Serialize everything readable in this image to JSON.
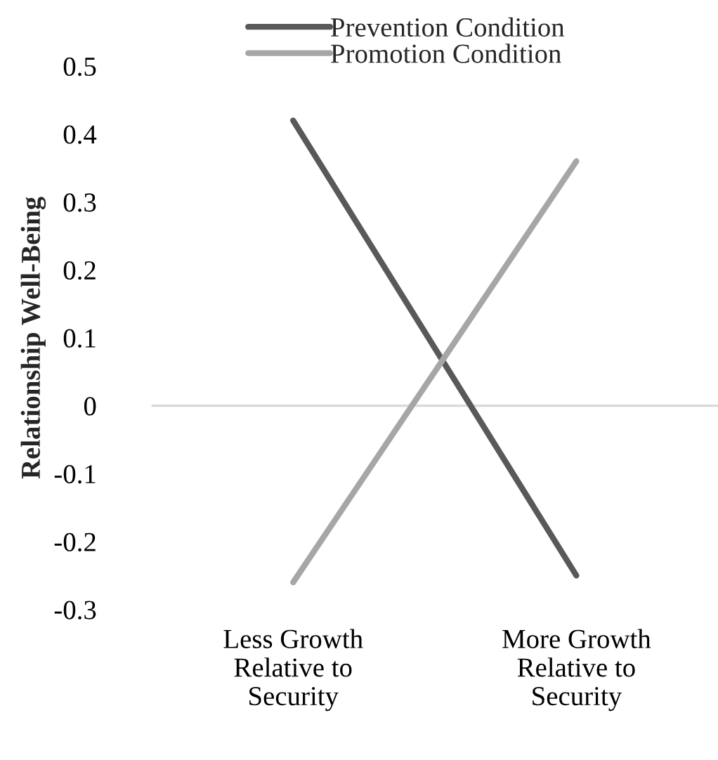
{
  "chart_data": {
    "type": "line",
    "ylabel": "Relationship Well-Being",
    "categories": [
      "Less Growth\nRelative to\nSecurity",
      "More Growth\nRelative to\nSecurity"
    ],
    "series": [
      {
        "name": "Prevention Condition",
        "color": "#595959",
        "values": [
          0.42,
          -0.25
        ]
      },
      {
        "name": "Promotion Condition",
        "color": "#a6a6a6",
        "values": [
          -0.26,
          0.36
        ]
      }
    ],
    "ylim": [
      -0.3,
      0.5
    ],
    "yticks": [
      -0.3,
      -0.2,
      -0.1,
      0,
      0.1,
      0.2,
      0.3,
      0.4,
      0.5
    ],
    "ref_lines": [
      {
        "axis": "y",
        "value": 0,
        "color": "#d9d9d9"
      }
    ],
    "grid": false,
    "legend": "top",
    "marker": "none",
    "line_style": "solid"
  }
}
